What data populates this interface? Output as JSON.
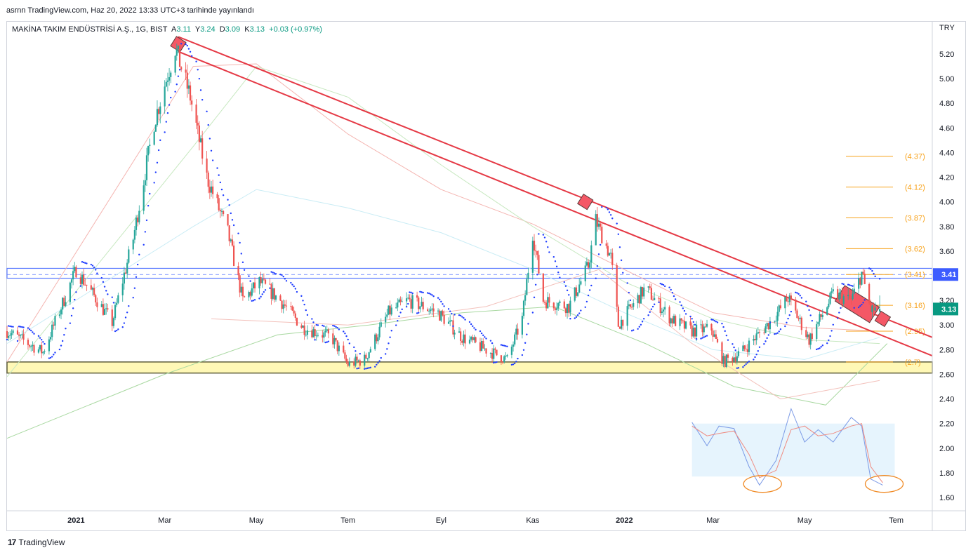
{
  "header": {
    "published_line": "asrnn TradingView.com, Haz 20, 2022 13:33 UTC+3 tarihinde yayınlandı"
  },
  "legend": {
    "symbol": "MAKİNA TAKIM ENDÜSTRİSİ A.Ş., 1G, BIST",
    "open_label": "A",
    "open": "3.11",
    "high_label": "Y",
    "high": "3.24",
    "low_label": "D",
    "low": "3.09",
    "close_label": "K",
    "close": "3.13",
    "change": "+0.03 (+0.97%)"
  },
  "currency": "TRY",
  "footer": {
    "brand": "TradingView",
    "logo": "tradingview-logo-icon"
  },
  "colors": {
    "up": "#26a69a",
    "down": "#ef5350",
    "channel": "#e53945",
    "support_zone": "#fff59d",
    "resistance": "#5b7bff",
    "fib": "#f7a21b",
    "psar": "#1e3cff",
    "last_price": "#089981"
  },
  "chart_data": {
    "type": "candlestick",
    "y_axis": {
      "min": 1.5,
      "max": 5.35,
      "ticks": [
        "5.20",
        "5.00",
        "4.80",
        "4.60",
        "4.40",
        "4.20",
        "4.00",
        "3.80",
        "3.60",
        "3.40",
        "3.20",
        "3.00",
        "2.80",
        "2.60",
        "2.40",
        "2.20",
        "2.00",
        "1.80",
        "1.60"
      ]
    },
    "x_axis": {
      "start": "2020-11-16",
      "end": "2022-07-25",
      "ticks": [
        {
          "label": "2021",
          "date": "2021-01-01",
          "bold": true
        },
        {
          "label": "Mar",
          "date": "2021-03-01"
        },
        {
          "label": "May",
          "date": "2021-05-01"
        },
        {
          "label": "Tem",
          "date": "2021-07-01"
        },
        {
          "label": "Eyl",
          "date": "2021-09-01"
        },
        {
          "label": "Kas",
          "date": "2021-11-01"
        },
        {
          "label": "2022",
          "date": "2022-01-01",
          "bold": true
        },
        {
          "label": "Mar",
          "date": "2022-03-01"
        },
        {
          "label": "May",
          "date": "2022-05-01"
        },
        {
          "label": "Tem",
          "date": "2022-07-01"
        }
      ]
    },
    "price_path": [
      [
        "2020-11-16",
        2.95
      ],
      [
        "2020-12-10",
        2.78
      ],
      [
        "2021-01-01",
        3.45
      ],
      [
        "2021-01-25",
        3.02
      ],
      [
        "2021-02-08",
        3.7
      ],
      [
        "2021-02-22",
        4.65
      ],
      [
        "2021-03-08",
        5.25
      ],
      [
        "2021-03-18",
        4.85
      ],
      [
        "2021-03-29",
        4.2
      ],
      [
        "2021-04-12",
        3.75
      ],
      [
        "2021-04-22",
        3.2
      ],
      [
        "2021-05-03",
        3.35
      ],
      [
        "2021-05-17",
        3.2
      ],
      [
        "2021-06-01",
        2.98
      ],
      [
        "2021-06-20",
        2.9
      ],
      [
        "2021-07-01",
        2.68
      ],
      [
        "2021-07-12",
        2.72
      ],
      [
        "2021-07-28",
        3.1
      ],
      [
        "2021-08-10",
        3.2
      ],
      [
        "2021-08-30",
        3.1
      ],
      [
        "2021-09-15",
        2.9
      ],
      [
        "2021-10-04",
        2.78
      ],
      [
        "2021-10-15",
        2.72
      ],
      [
        "2021-10-25",
        3.05
      ],
      [
        "2021-11-01",
        3.75
      ],
      [
        "2021-11-08",
        3.2
      ],
      [
        "2021-11-25",
        3.15
      ],
      [
        "2021-12-08",
        3.48
      ],
      [
        "2021-12-13",
        3.85
      ],
      [
        "2021-12-23",
        3.55
      ],
      [
        "2021-12-28",
        3.0
      ],
      [
        "2022-01-15",
        3.3
      ],
      [
        "2022-02-01",
        3.05
      ],
      [
        "2022-02-15",
        2.95
      ],
      [
        "2022-02-28",
        2.97
      ],
      [
        "2022-03-08",
        2.7
      ],
      [
        "2022-03-20",
        2.78
      ],
      [
        "2022-04-10",
        3.05
      ],
      [
        "2022-04-20",
        3.22
      ],
      [
        "2022-05-04",
        2.88
      ],
      [
        "2022-05-20",
        3.25
      ],
      [
        "2022-06-01",
        3.2
      ],
      [
        "2022-06-08",
        3.42
      ],
      [
        "2022-06-14",
        3.12
      ],
      [
        "2022-06-20",
        3.13
      ]
    ],
    "last_price": "3.13",
    "resistance_zone": {
      "top": 3.46,
      "bottom": 3.38,
      "label": "3.41"
    },
    "support_zone": {
      "top": 2.7,
      "bottom": 2.61
    },
    "fib_levels": [
      {
        "label": "(4.37)",
        "value": 4.37
      },
      {
        "label": "(4.12)",
        "value": 4.12
      },
      {
        "label": "(3.87)",
        "value": 3.87
      },
      {
        "label": "(3.62)",
        "value": 3.62
      },
      {
        "label": "(3.41)",
        "value": 3.41
      },
      {
        "label": "(3.16)",
        "value": 3.16
      },
      {
        "label": "(2.95)",
        "value": 2.95
      },
      {
        "label": "(2.7)",
        "value": 2.7
      }
    ],
    "channel": {
      "upper": [
        [
          "2021-03-10",
          5.34
        ],
        [
          "2022-07-25",
          2.9
        ]
      ],
      "lower": [
        [
          "2021-03-10",
          5.22
        ],
        [
          "2022-07-25",
          2.75
        ]
      ],
      "touches": [
        {
          "date": "2021-03-10",
          "value": 5.28
        },
        {
          "date": "2021-12-06",
          "value": 4.0
        },
        {
          "date": "2022-06-05",
          "value": 3.17
        },
        {
          "date": "2022-06-22",
          "value": 3.05
        }
      ]
    },
    "moving_averages": [
      {
        "color": "#f4b4b0",
        "path": [
          [
            "2020-11-16",
            2.7
          ],
          [
            "2021-03-20",
            5.1
          ],
          [
            "2021-05-01",
            5.12
          ],
          [
            "2021-07-01",
            4.55
          ],
          [
            "2021-09-01",
            4.1
          ],
          [
            "2021-11-01",
            3.82
          ],
          [
            "2022-01-01",
            3.45
          ],
          [
            "2022-03-01",
            3.1
          ],
          [
            "2022-05-01",
            2.98
          ],
          [
            "2022-06-20",
            2.95
          ]
        ]
      },
      {
        "color": "#c7e8c0",
        "path": [
          [
            "2020-11-16",
            2.58
          ],
          [
            "2021-03-20",
            4.45
          ],
          [
            "2021-05-01",
            5.1
          ],
          [
            "2021-07-01",
            4.85
          ],
          [
            "2021-09-01",
            4.3
          ],
          [
            "2021-11-01",
            3.8
          ],
          [
            "2022-01-01",
            3.35
          ],
          [
            "2022-03-01",
            3.05
          ],
          [
            "2022-05-01",
            2.88
          ],
          [
            "2022-06-20",
            2.85
          ]
        ]
      },
      {
        "color": "#c9ecf5",
        "path": [
          [
            "2020-11-16",
            2.85
          ],
          [
            "2021-03-20",
            3.8
          ],
          [
            "2021-05-01",
            4.1
          ],
          [
            "2021-07-01",
            3.95
          ],
          [
            "2021-09-01",
            3.75
          ],
          [
            "2021-11-01",
            3.45
          ],
          [
            "2022-01-01",
            3.1
          ],
          [
            "2022-03-01",
            2.8
          ],
          [
            "2022-05-01",
            2.72
          ],
          [
            "2022-06-20",
            2.9
          ]
        ]
      },
      {
        "color": "#a8d8a0",
        "path": [
          [
            "2020-11-16",
            2.08
          ],
          [
            "2021-03-01",
            2.6
          ],
          [
            "2021-05-15",
            2.92
          ],
          [
            "2021-07-15",
            3.0
          ],
          [
            "2021-09-15",
            3.1
          ],
          [
            "2021-11-15",
            3.15
          ],
          [
            "2022-01-15",
            2.85
          ],
          [
            "2022-03-15",
            2.5
          ],
          [
            "2022-05-15",
            2.35
          ],
          [
            "2022-06-25",
            2.85
          ]
        ]
      },
      {
        "color": "#f3c1bb",
        "path": [
          [
            "2021-04-01",
            3.05
          ],
          [
            "2021-07-01",
            3.0
          ],
          [
            "2021-10-01",
            3.15
          ],
          [
            "2021-12-15",
            3.45
          ],
          [
            "2022-02-15",
            2.85
          ],
          [
            "2022-04-15",
            2.4
          ],
          [
            "2022-06-20",
            2.55
          ]
        ]
      }
    ],
    "oscillator": {
      "zone": {
        "top": 2.2,
        "bottom": 1.77,
        "start": "2022-02-15",
        "end": "2022-06-30"
      },
      "k": [
        [
          "2022-02-15",
          2.21
        ],
        [
          "2022-02-25",
          2.02
        ],
        [
          "2022-03-05",
          2.18
        ],
        [
          "2022-03-15",
          2.16
        ],
        [
          "2022-03-25",
          1.85
        ],
        [
          "2022-04-01",
          1.7
        ],
        [
          "2022-04-12",
          1.9
        ],
        [
          "2022-04-22",
          2.32
        ],
        [
          "2022-05-01",
          2.05
        ],
        [
          "2022-05-10",
          2.15
        ],
        [
          "2022-05-20",
          2.05
        ],
        [
          "2022-06-01",
          2.25
        ],
        [
          "2022-06-08",
          2.18
        ],
        [
          "2022-06-14",
          1.75
        ],
        [
          "2022-06-22",
          1.7
        ]
      ],
      "d": [
        [
          "2022-02-15",
          2.18
        ],
        [
          "2022-02-25",
          2.1
        ],
        [
          "2022-03-05",
          2.12
        ],
        [
          "2022-03-15",
          2.14
        ],
        [
          "2022-03-25",
          1.95
        ],
        [
          "2022-04-01",
          1.76
        ],
        [
          "2022-04-12",
          1.82
        ],
        [
          "2022-04-22",
          2.15
        ],
        [
          "2022-05-01",
          2.18
        ],
        [
          "2022-05-10",
          2.1
        ],
        [
          "2022-05-20",
          2.12
        ],
        [
          "2022-06-01",
          2.18
        ],
        [
          "2022-06-08",
          2.2
        ],
        [
          "2022-06-14",
          1.85
        ],
        [
          "2022-06-22",
          1.72
        ]
      ],
      "circles": [
        {
          "date": "2022-04-03",
          "value": 1.71
        },
        {
          "date": "2022-06-23",
          "value": 1.71
        }
      ]
    }
  }
}
